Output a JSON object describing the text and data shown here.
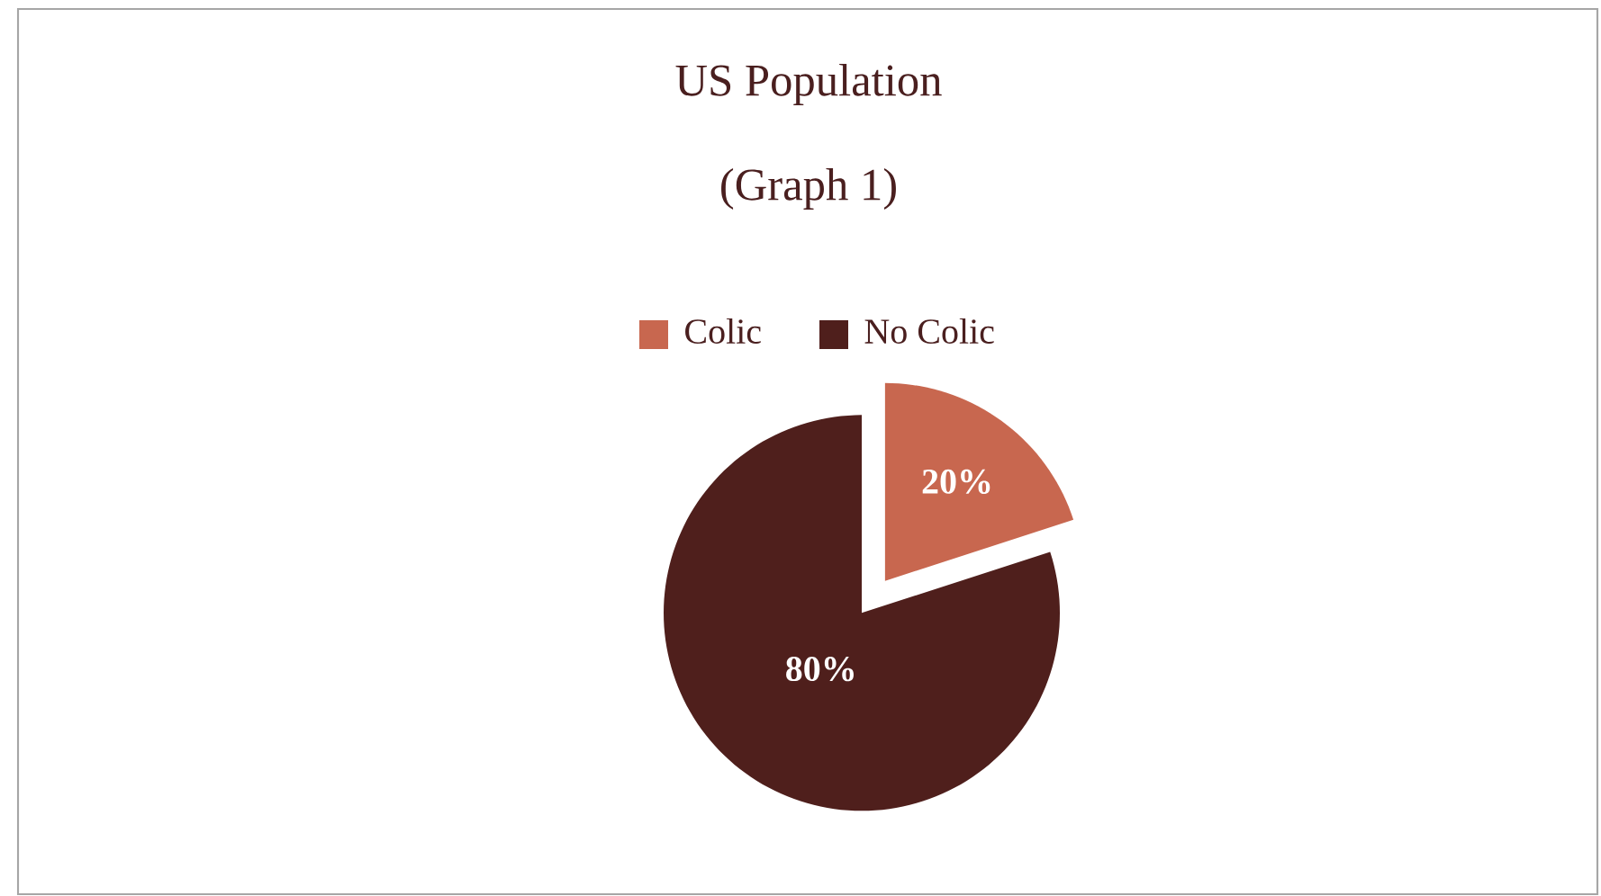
{
  "chart_data": {
    "type": "pie",
    "title": "US Population",
    "subtitle": "(Graph 1)",
    "categories": [
      "Colic",
      "No Colic"
    ],
    "values": [
      20,
      80
    ],
    "colors": [
      "#c8674f",
      "#4f1f1c"
    ],
    "value_labels": [
      "20%",
      "80%"
    ],
    "legend": "top"
  }
}
